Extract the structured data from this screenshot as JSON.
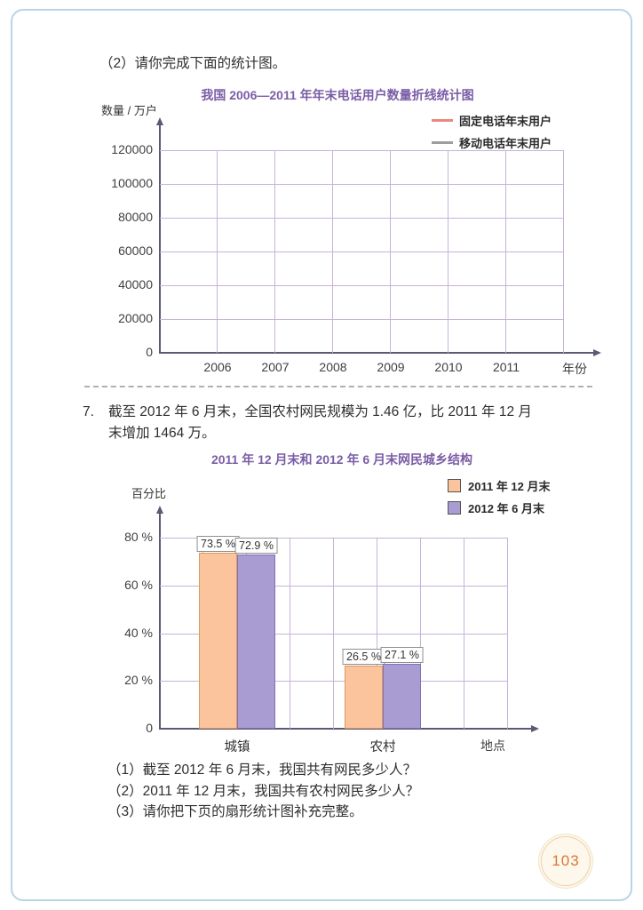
{
  "page": {
    "number": "103"
  },
  "theme": {
    "title_purple": "#7a5da6",
    "grid_line": "#c6b3d9",
    "axis": "#5e5875",
    "tick_text": "#3f3f3f",
    "body_text": "#333333",
    "page_border": "#b7d4e8",
    "divider": "#a9b4ac",
    "badge_text": "#dd7733",
    "badge_bg": "#fdf7ec",
    "badge_border": "#e9d3ab"
  },
  "section_2_prompt": "（2）请你完成下面的统计图。",
  "problem_7": {
    "number": "7.",
    "text_lines": [
      "截至 2012 年 6 月末，全国农村网民规模为 1.46 亿，比 2011 年 12 月",
      "末增加 1464 万。"
    ],
    "questions": [
      "（1）截至 2012 年 6 月末，我国共有网民多少人？",
      "（2）2011 年 12 月末，我国共有农村网民多少人？",
      "（3）请你把下页的扇形统计图补充完整。"
    ]
  },
  "chart_data": [
    {
      "type": "line",
      "title": "我国 2006—2011 年年末电话用户数量折线统计图",
      "ylabel": "数量 / 万户",
      "xlabel": "年份",
      "x": [
        "2006",
        "2007",
        "2008",
        "2009",
        "2010",
        "2011"
      ],
      "ylim": [
        0,
        120000
      ],
      "y_ticks": [
        {
          "v": 0,
          "label": "0"
        },
        {
          "v": 20000,
          "label": "20000"
        },
        {
          "v": 40000,
          "label": "40000"
        },
        {
          "v": 60000,
          "label": "60000"
        },
        {
          "v": 80000,
          "label": "80000"
        },
        {
          "v": 100000,
          "label": "100000"
        },
        {
          "v": 120000,
          "label": "120000"
        }
      ],
      "grid": true,
      "legend_position": "top-right",
      "series": [
        {
          "name": "固定电话年末用户",
          "color": "#e8897c",
          "values": []
        },
        {
          "name": "移动电话年末用户",
          "color": "#9e9e9e",
          "values": []
        }
      ]
    },
    {
      "type": "bar",
      "title": "2011 年 12 月末和 2012 年 6 月末网民城乡结构",
      "ylabel": "百分比",
      "xlabel": "地点",
      "categories": [
        "城镇",
        "农村"
      ],
      "ylim": [
        0,
        80
      ],
      "y_ticks": [
        {
          "v": 0,
          "label": "0"
        },
        {
          "v": 20,
          "label": "20 %"
        },
        {
          "v": 40,
          "label": "40 %"
        },
        {
          "v": 60,
          "label": "60 %"
        },
        {
          "v": 80,
          "label": "80 %"
        }
      ],
      "grid": true,
      "legend_position": "top-right",
      "value_label_suffix": " %",
      "series": [
        {
          "name": "2011 年 12 月末",
          "fill": "#fcc49c",
          "border": "#db9a62",
          "values": [
            73.5,
            26.5
          ]
        },
        {
          "name": "2012 年 6 月末",
          "fill": "#a89cd2",
          "border": "#8171b5",
          "values": [
            72.9,
            27.1
          ]
        }
      ]
    }
  ]
}
